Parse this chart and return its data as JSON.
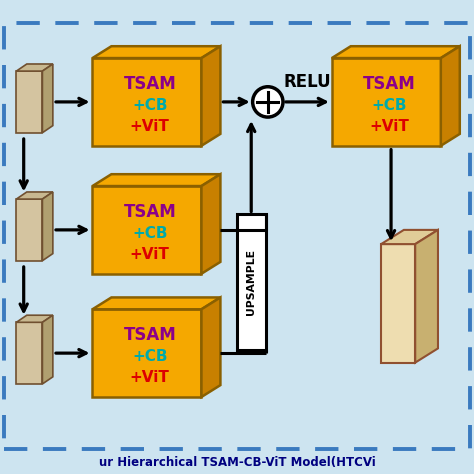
{
  "bg_color": "#cde4f0",
  "border_color": "#3a7abf",
  "box_face_color": "#f5a800",
  "box_top_color": "#f5a800",
  "box_right_color": "#c88000",
  "box_edge_color": "#8a6000",
  "text_tsam_color": "#8b008b",
  "text_cb_color": "#00aaaa",
  "text_vit_color": "#dd0000",
  "input_face_color": "#d4c4a0",
  "input_top_color": "#c8b890",
  "input_right_color": "#b0a070",
  "input_edge_color": "#705030",
  "output_face_color": "#eeddb0",
  "output_top_color": "#e0cc98",
  "output_right_color": "#c8b070",
  "output_edge_color": "#905030",
  "title_color": "#000080",
  "title_text": "ur Hierarchical TSAM-CB-ViT Model(HTCVi",
  "relu_text": "RELU",
  "upsample_text": "UPSAMPLE",
  "figsize": [
    4.74,
    4.74
  ],
  "dpi": 100
}
